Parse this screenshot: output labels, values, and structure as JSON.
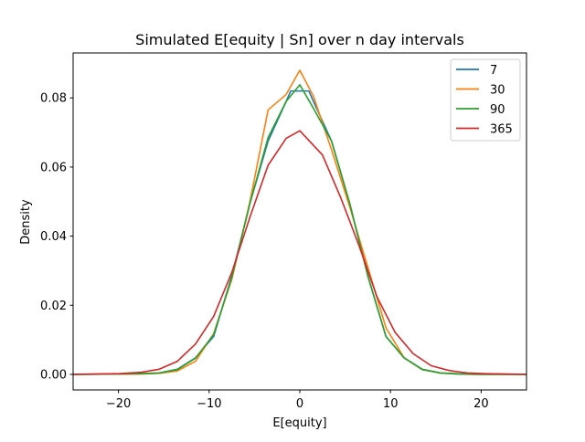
{
  "chart_data": {
    "type": "line",
    "title": "Simulated E[equity | Sn] over n day intervals",
    "xlabel": "E[equity]",
    "ylabel": "Density",
    "xlim": [
      -25,
      25
    ],
    "ylim": [
      -0.0045,
      0.093
    ],
    "xticks": [
      -20,
      -10,
      0,
      10,
      20
    ],
    "xtick_labels": [
      "−20",
      "−10",
      "0",
      "10",
      "20"
    ],
    "yticks": [
      0.0,
      0.02,
      0.04,
      0.06,
      0.08
    ],
    "ytick_labels": [
      "0.00",
      "0.02",
      "0.04",
      "0.06",
      "0.08"
    ],
    "grid": false,
    "legend_position": "top-right",
    "series": [
      {
        "name": "7",
        "color": "#1f77b4",
        "x": [
          -30,
          -25,
          -20,
          -17.5,
          -15.5,
          -13.5,
          -11.5,
          -9.5,
          -7.5,
          -5.5,
          -3.5,
          -1.5,
          -1,
          0,
          1,
          1.5,
          3.5,
          5.5,
          7.5,
          9.5,
          11.5,
          13.5,
          15.5,
          17.5,
          20,
          25,
          30
        ],
        "y": [
          0,
          0,
          0.0001,
          0.0002,
          0.0004,
          0.0015,
          0.0048,
          0.011,
          0.0285,
          0.0495,
          0.0675,
          0.079,
          0.082,
          0.082,
          0.082,
          0.079,
          0.0675,
          0.0495,
          0.0285,
          0.011,
          0.0048,
          0.0015,
          0.0004,
          0.0002,
          0.0001,
          0,
          0
        ]
      },
      {
        "name": "30",
        "color": "#ff7f0e",
        "x": [
          -30,
          -25,
          -20,
          -17.5,
          -15.5,
          -13.5,
          -11.5,
          -9.5,
          -7.5,
          -5.5,
          -3.5,
          -1.5,
          0,
          1.5,
          3.5,
          5.5,
          7.5,
          9.5,
          11.5,
          13.5,
          15.5,
          17.5,
          20,
          25,
          30
        ],
        "y": [
          0,
          0,
          0.0001,
          0.0001,
          0.0003,
          0.001,
          0.0038,
          0.0118,
          0.0275,
          0.05,
          0.0765,
          0.081,
          0.088,
          0.0805,
          0.065,
          0.0485,
          0.031,
          0.0135,
          0.0048,
          0.0014,
          0.0004,
          0.0001,
          0,
          0,
          0
        ]
      },
      {
        "name": "90",
        "color": "#2ca02c",
        "x": [
          -30,
          -25,
          -20,
          -17.5,
          -15.5,
          -13.5,
          -11.5,
          -9.5,
          -7.5,
          -5.5,
          -3.5,
          -1.5,
          0,
          1.5,
          3.5,
          5.5,
          7.5,
          9.5,
          11.5,
          13.5,
          15.5,
          17.5,
          20,
          25,
          30
        ],
        "y": [
          0,
          0,
          0.0001,
          0.0002,
          0.0004,
          0.0014,
          0.0047,
          0.0115,
          0.028,
          0.0495,
          0.0685,
          0.079,
          0.0838,
          0.077,
          0.0675,
          0.0495,
          0.0285,
          0.011,
          0.0048,
          0.0014,
          0.0004,
          0.0001,
          0,
          0,
          0
        ]
      },
      {
        "name": "365",
        "color": "#d62728",
        "x": [
          -30,
          -25,
          -20,
          -17.5,
          -15.5,
          -13.5,
          -11.5,
          -9.5,
          -7.5,
          -5.5,
          -3.5,
          -1.5,
          0,
          2.5,
          4.5,
          6.5,
          8.5,
          10.5,
          12.5,
          14.5,
          16.5,
          18.5,
          20.5,
          25,
          30
        ],
        "y": [
          0,
          0,
          0.0002,
          0.0006,
          0.0015,
          0.0038,
          0.0088,
          0.0168,
          0.0295,
          0.0455,
          0.0605,
          0.0683,
          0.0705,
          0.0635,
          0.0512,
          0.0375,
          0.0225,
          0.0122,
          0.006,
          0.0025,
          0.0011,
          0.0004,
          0.0002,
          0,
          0
        ]
      }
    ]
  }
}
